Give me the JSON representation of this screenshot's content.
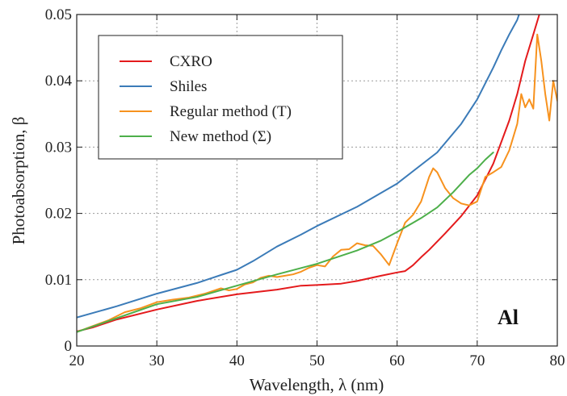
{
  "chart_data": {
    "type": "line",
    "xlabel": "Wavelength, λ (nm)",
    "ylabel": "Photoabsorption, β",
    "xlim": [
      20,
      80
    ],
    "ylim": [
      0,
      0.05
    ],
    "xticks": [
      20,
      30,
      40,
      50,
      60,
      70,
      80
    ],
    "yticks": [
      0,
      0.01,
      0.02,
      0.03,
      0.04,
      0.05
    ],
    "xtick_labels": [
      "20",
      "30",
      "40",
      "50",
      "60",
      "70",
      "80"
    ],
    "ytick_labels": [
      "0",
      "0.01",
      "0.02",
      "0.03",
      "0.04",
      "0.05"
    ],
    "grid": true,
    "legend_position": "top-left",
    "annotation": "Al",
    "series": [
      {
        "name": "CXRO",
        "color": "#e41a1c",
        "x": [
          20,
          22,
          25,
          30,
          35,
          40,
          45,
          48,
          50,
          53,
          55,
          58,
          60,
          61,
          62,
          63,
          64,
          66,
          68,
          70,
          72,
          74,
          75,
          76,
          77,
          78
        ],
        "y": [
          0.0022,
          0.0028,
          0.004,
          0.0055,
          0.0068,
          0.0078,
          0.0085,
          0.0091,
          0.0092,
          0.0094,
          0.0098,
          0.0106,
          0.0111,
          0.0113,
          0.0122,
          0.0134,
          0.0145,
          0.017,
          0.0196,
          0.0227,
          0.0275,
          0.034,
          0.038,
          0.043,
          0.047,
          0.051
        ]
      },
      {
        "name": "Shiles",
        "color": "#3b7bb8",
        "x": [
          20,
          25,
          30,
          35,
          38,
          40,
          42,
          45,
          48,
          50,
          55,
          60,
          65,
          68,
          70,
          72,
          73,
          74,
          75,
          75.5
        ],
        "y": [
          0.0043,
          0.006,
          0.0079,
          0.0095,
          0.0107,
          0.0115,
          0.0128,
          0.015,
          0.0168,
          0.0181,
          0.021,
          0.0245,
          0.0292,
          0.0335,
          0.0372,
          0.042,
          0.0446,
          0.047,
          0.0492,
          0.051
        ]
      },
      {
        "name": "Regular method (T)",
        "color": "#f7921e",
        "x": [
          20,
          22,
          24,
          26,
          28,
          30,
          32,
          34,
          36,
          38,
          39,
          40,
          41,
          42,
          43,
          44,
          45,
          46,
          47,
          48,
          49,
          50,
          51,
          52,
          53,
          54,
          55,
          56,
          57,
          58,
          59,
          60,
          61,
          62,
          63,
          64,
          64.5,
          65,
          66,
          67,
          68,
          69,
          70,
          71,
          72,
          73,
          74,
          75,
          75.5,
          76,
          76.5,
          77,
          77.5,
          78,
          78.5,
          79,
          79.5,
          80
        ],
        "y": [
          0.0021,
          0.003,
          0.0039,
          0.0051,
          0.0057,
          0.0066,
          0.007,
          0.0073,
          0.0079,
          0.0087,
          0.0084,
          0.0086,
          0.0093,
          0.0096,
          0.0103,
          0.0106,
          0.0104,
          0.0106,
          0.0108,
          0.0112,
          0.0118,
          0.0122,
          0.012,
          0.0135,
          0.0145,
          0.0146,
          0.0155,
          0.0152,
          0.0151,
          0.0138,
          0.0122,
          0.0155,
          0.0186,
          0.0198,
          0.0218,
          0.0255,
          0.0268,
          0.0262,
          0.0238,
          0.0223,
          0.0215,
          0.0212,
          0.0218,
          0.0255,
          0.0262,
          0.027,
          0.0295,
          0.0335,
          0.038,
          0.036,
          0.0372,
          0.0358,
          0.047,
          0.043,
          0.038,
          0.034,
          0.04,
          0.037
        ]
      },
      {
        "name": "New method (Σ)",
        "color": "#4daf4a",
        "x": [
          20,
          25,
          30,
          35,
          40,
          45,
          50,
          55,
          58,
          60,
          63,
          65,
          67,
          69,
          70,
          71,
          72
        ],
        "y": [
          0.0021,
          0.0042,
          0.0063,
          0.0074,
          0.0091,
          0.0108,
          0.0124,
          0.0144,
          0.0159,
          0.0172,
          0.0193,
          0.0209,
          0.0232,
          0.0258,
          0.0268,
          0.0281,
          0.0292
        ]
      }
    ]
  }
}
